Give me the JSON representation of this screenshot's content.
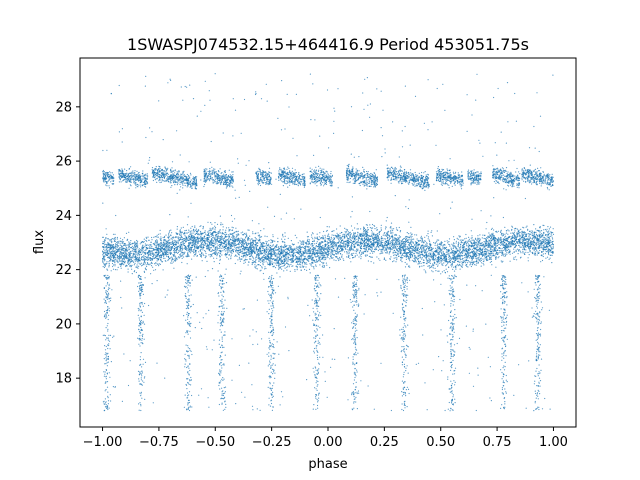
{
  "chart_data": {
    "type": "scatter",
    "title": "1SWASPJ074532.15+464416.9 Period 453051.75s",
    "xlabel": "phase",
    "ylabel": "flux",
    "xlim": [
      -1.1,
      1.1
    ],
    "ylim": [
      16.2,
      29.8
    ],
    "xticks": [
      -1.0,
      -0.75,
      -0.5,
      -0.25,
      0.0,
      0.25,
      0.5,
      0.75,
      1.0
    ],
    "xtick_labels": [
      "−1.00",
      "−0.75",
      "−0.50",
      "−0.25",
      "0.00",
      "0.25",
      "0.50",
      "0.75",
      "1.00"
    ],
    "yticks": [
      18,
      20,
      22,
      24,
      26,
      28
    ],
    "ytick_labels": [
      "18",
      "20",
      "22",
      "24",
      "26",
      "28"
    ],
    "grid": false,
    "legend": "none",
    "marker_color": "#1f77b4",
    "series": [
      {
        "x_range": [
          -1.0,
          1.0
        ],
        "bands": [
          {
            "y_center": 22.8,
            "y_spread": 0.8
          },
          {
            "y_center": 25.4,
            "y_spread": 0.5,
            "segments": [
              [
                -1.0,
                -0.95
              ],
              [
                -0.93,
                -0.8
              ],
              [
                -0.78,
                -0.58
              ],
              [
                -0.55,
                -0.42
              ],
              [
                -0.32,
                -0.25
              ],
              [
                -0.22,
                -0.1
              ],
              [
                -0.08,
                0.02
              ],
              [
                0.08,
                0.22
              ],
              [
                0.26,
                0.45
              ],
              [
                0.48,
                0.6
              ],
              [
                0.62,
                0.68
              ],
              [
                0.73,
                0.85
              ],
              [
                0.86,
                1.0
              ]
            ]
          }
        ],
        "dips": [
          -0.98,
          -0.83,
          -0.62,
          -0.47,
          -0.25,
          -0.05,
          0.12,
          0.34,
          0.55,
          0.78,
          0.93
        ],
        "y_min": 16.8,
        "y_max": 29.3
      }
    ]
  }
}
